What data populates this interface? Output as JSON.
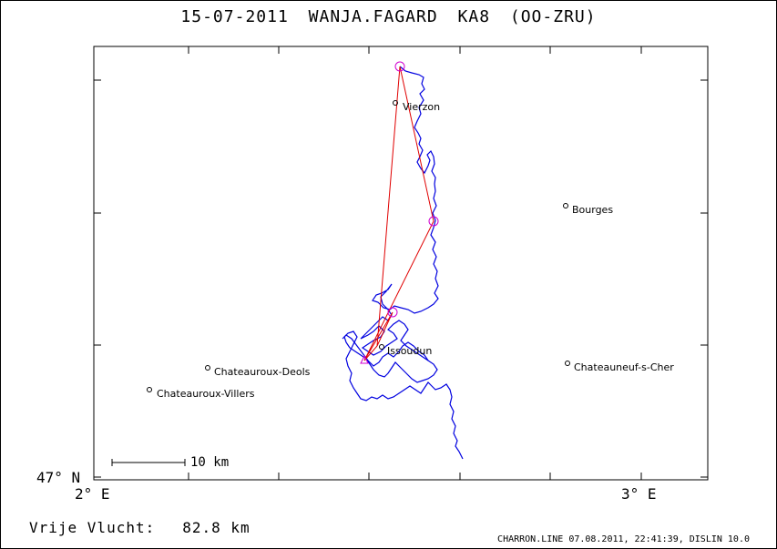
{
  "title": {
    "date": "15-07-2011",
    "pilot": "WANJA.FAGARD",
    "glider": "KA8 (OO-ZRU)"
  },
  "axes": {
    "lat_label": "47° N",
    "lon_left_label": "2° E",
    "lon_right_label": "3° E"
  },
  "scale_bar": {
    "label": "10 km"
  },
  "footer": {
    "free_flight_label": "Vrije Vlucht:",
    "free_flight_value": "82.8 km",
    "credit": "CHARRON.LINE 07.08.2011, 22:41:39, DISLIN 10.0"
  },
  "colors": {
    "track": "#0000e0",
    "task": "#e00000",
    "turnpoint": "#d000d0",
    "frame": "#000000"
  },
  "places": [
    {
      "name": "Vierzon"
    },
    {
      "name": "Bourges"
    },
    {
      "name": "Issoudun"
    },
    {
      "name": "Chateauroux-Deols"
    },
    {
      "name": "Chateauroux-Villers"
    },
    {
      "name": "Chateauneuf-s-Cher"
    }
  ]
}
